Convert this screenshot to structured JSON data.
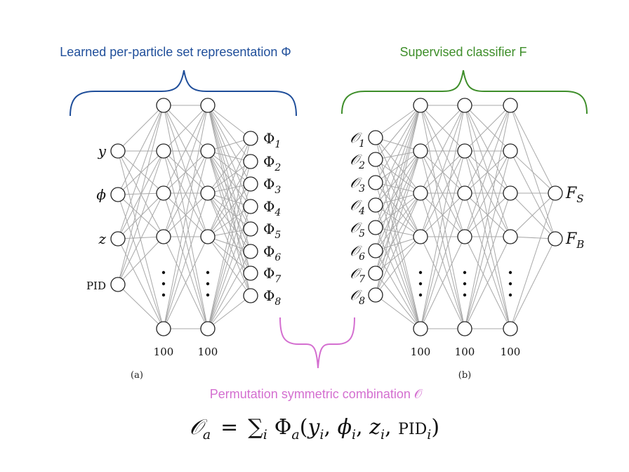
{
  "titles": {
    "left": "Learned per-particle set representation Φ",
    "right": "Supervised classifier F",
    "bottom": "Permutation symmetric combination 𝒪"
  },
  "colors": {
    "blue": "#1f4e9a",
    "green": "#3e8e2a",
    "magenta": "#d46fd0",
    "edge": "#a8a8a8",
    "node": "#222222"
  },
  "left_net": {
    "inputs": [
      {
        "base": "y",
        "sub": "",
        "italic": true
      },
      {
        "base": "ϕ",
        "sub": "",
        "italic": true
      },
      {
        "base": "z",
        "sub": "",
        "italic": true
      },
      {
        "base": "PID",
        "sub": "",
        "italic": false
      }
    ],
    "hidden_sizes": [
      "100",
      "100"
    ],
    "outputs": [
      {
        "base": "Φ",
        "sub": "1"
      },
      {
        "base": "Φ",
        "sub": "2"
      },
      {
        "base": "Φ",
        "sub": "3"
      },
      {
        "base": "Φ",
        "sub": "4"
      },
      {
        "base": "Φ",
        "sub": "5"
      },
      {
        "base": "Φ",
        "sub": "6"
      },
      {
        "base": "Φ",
        "sub": "7"
      },
      {
        "base": "Φ",
        "sub": "8"
      }
    ],
    "panel_label": "(a)"
  },
  "right_net": {
    "inputs": [
      {
        "base": "𝒪",
        "sub": "1"
      },
      {
        "base": "𝒪",
        "sub": "2"
      },
      {
        "base": "𝒪",
        "sub": "3"
      },
      {
        "base": "𝒪",
        "sub": "4"
      },
      {
        "base": "𝒪",
        "sub": "5"
      },
      {
        "base": "𝒪",
        "sub": "6"
      },
      {
        "base": "𝒪",
        "sub": "7"
      },
      {
        "base": "𝒪",
        "sub": "8"
      }
    ],
    "hidden_sizes": [
      "100",
      "100",
      "100"
    ],
    "outputs": [
      {
        "base": "F",
        "sub": "S"
      },
      {
        "base": "F",
        "sub": "B"
      }
    ],
    "panel_label": "(b)"
  },
  "equation": {
    "lhs": "𝒪",
    "lhs_sub": "a",
    "eq": "=",
    "sum": "∑",
    "sum_sub": "i",
    "phi": "Φ",
    "phi_sub": "a",
    "args": [
      {
        "base": "y",
        "sub": "i"
      },
      {
        "base": "ϕ",
        "sub": "i"
      },
      {
        "base": "z",
        "sub": "i"
      },
      {
        "base": "PID",
        "sub": "i"
      }
    ]
  }
}
